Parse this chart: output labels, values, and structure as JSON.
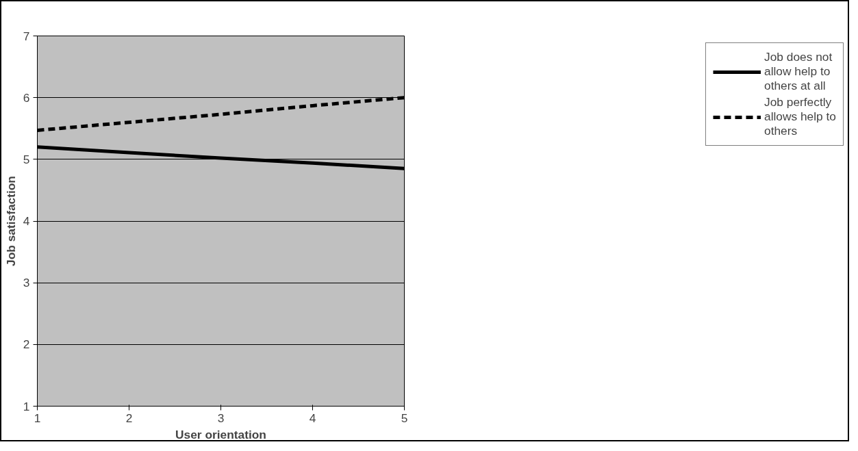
{
  "chart_data": {
    "type": "line",
    "xlabel": "User orientation",
    "ylabel": "Job satisfaction",
    "x": [
      1,
      2,
      3,
      4,
      5
    ],
    "series": [
      {
        "name": "Job does not allow help to others at all",
        "color": "#000000",
        "line_style": "solid",
        "values": [
          5.2,
          5.11,
          5.02,
          4.94,
          4.85
        ]
      },
      {
        "name": "Job perfectly allows help to others",
        "color": "#000000",
        "line_style": "dashed",
        "values": [
          5.47,
          5.6,
          5.73,
          5.87,
          6.0
        ]
      }
    ],
    "xlim": [
      1,
      5
    ],
    "ylim": [
      1,
      7
    ],
    "xticks": [
      1,
      2,
      3,
      4,
      5
    ],
    "yticks": [
      1,
      2,
      3,
      4,
      5,
      6,
      7
    ],
    "grid": "y",
    "legend": "right",
    "marker": "none"
  }
}
